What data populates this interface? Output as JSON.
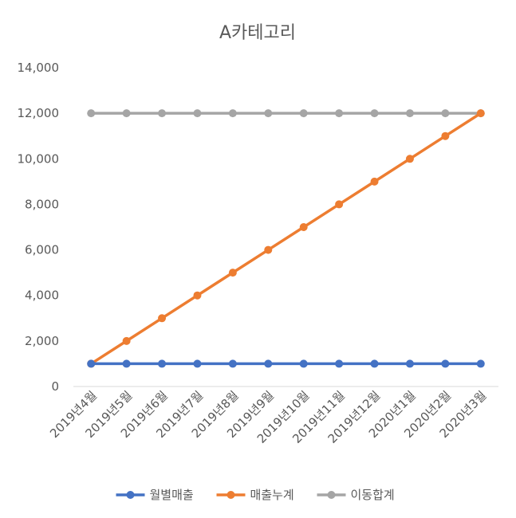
{
  "chart_data": {
    "type": "line",
    "title": "A카테고리",
    "xlabel": "",
    "ylabel": "",
    "categories": [
      "2019년4월",
      "2019년5월",
      "2019년6월",
      "2019년7월",
      "2019년8월",
      "2019년9월",
      "2019년10월",
      "2019년11월",
      "2019년12월",
      "2020년1월",
      "2020년2월",
      "2020년3월"
    ],
    "ylim": [
      0,
      14000
    ],
    "yticks": [
      "0",
      "2,000",
      "4,000",
      "6,000",
      "8,000",
      "10,000",
      "12,000",
      "14,000"
    ],
    "grid": false,
    "legend_position": "bottom",
    "series": [
      {
        "name": "월별매출",
        "color": "#4472c4",
        "values": [
          1000,
          1000,
          1000,
          1000,
          1000,
          1000,
          1000,
          1000,
          1000,
          1000,
          1000,
          1000
        ]
      },
      {
        "name": "매출누계",
        "color": "#ed7d31",
        "values": [
          1000,
          2000,
          3000,
          4000,
          5000,
          6000,
          7000,
          8000,
          9000,
          10000,
          11000,
          12000
        ]
      },
      {
        "name": "이동합계",
        "color": "#a5a5a5",
        "values": [
          12000,
          12000,
          12000,
          12000,
          12000,
          12000,
          12000,
          12000,
          12000,
          12000,
          12000,
          12000
        ]
      }
    ]
  }
}
